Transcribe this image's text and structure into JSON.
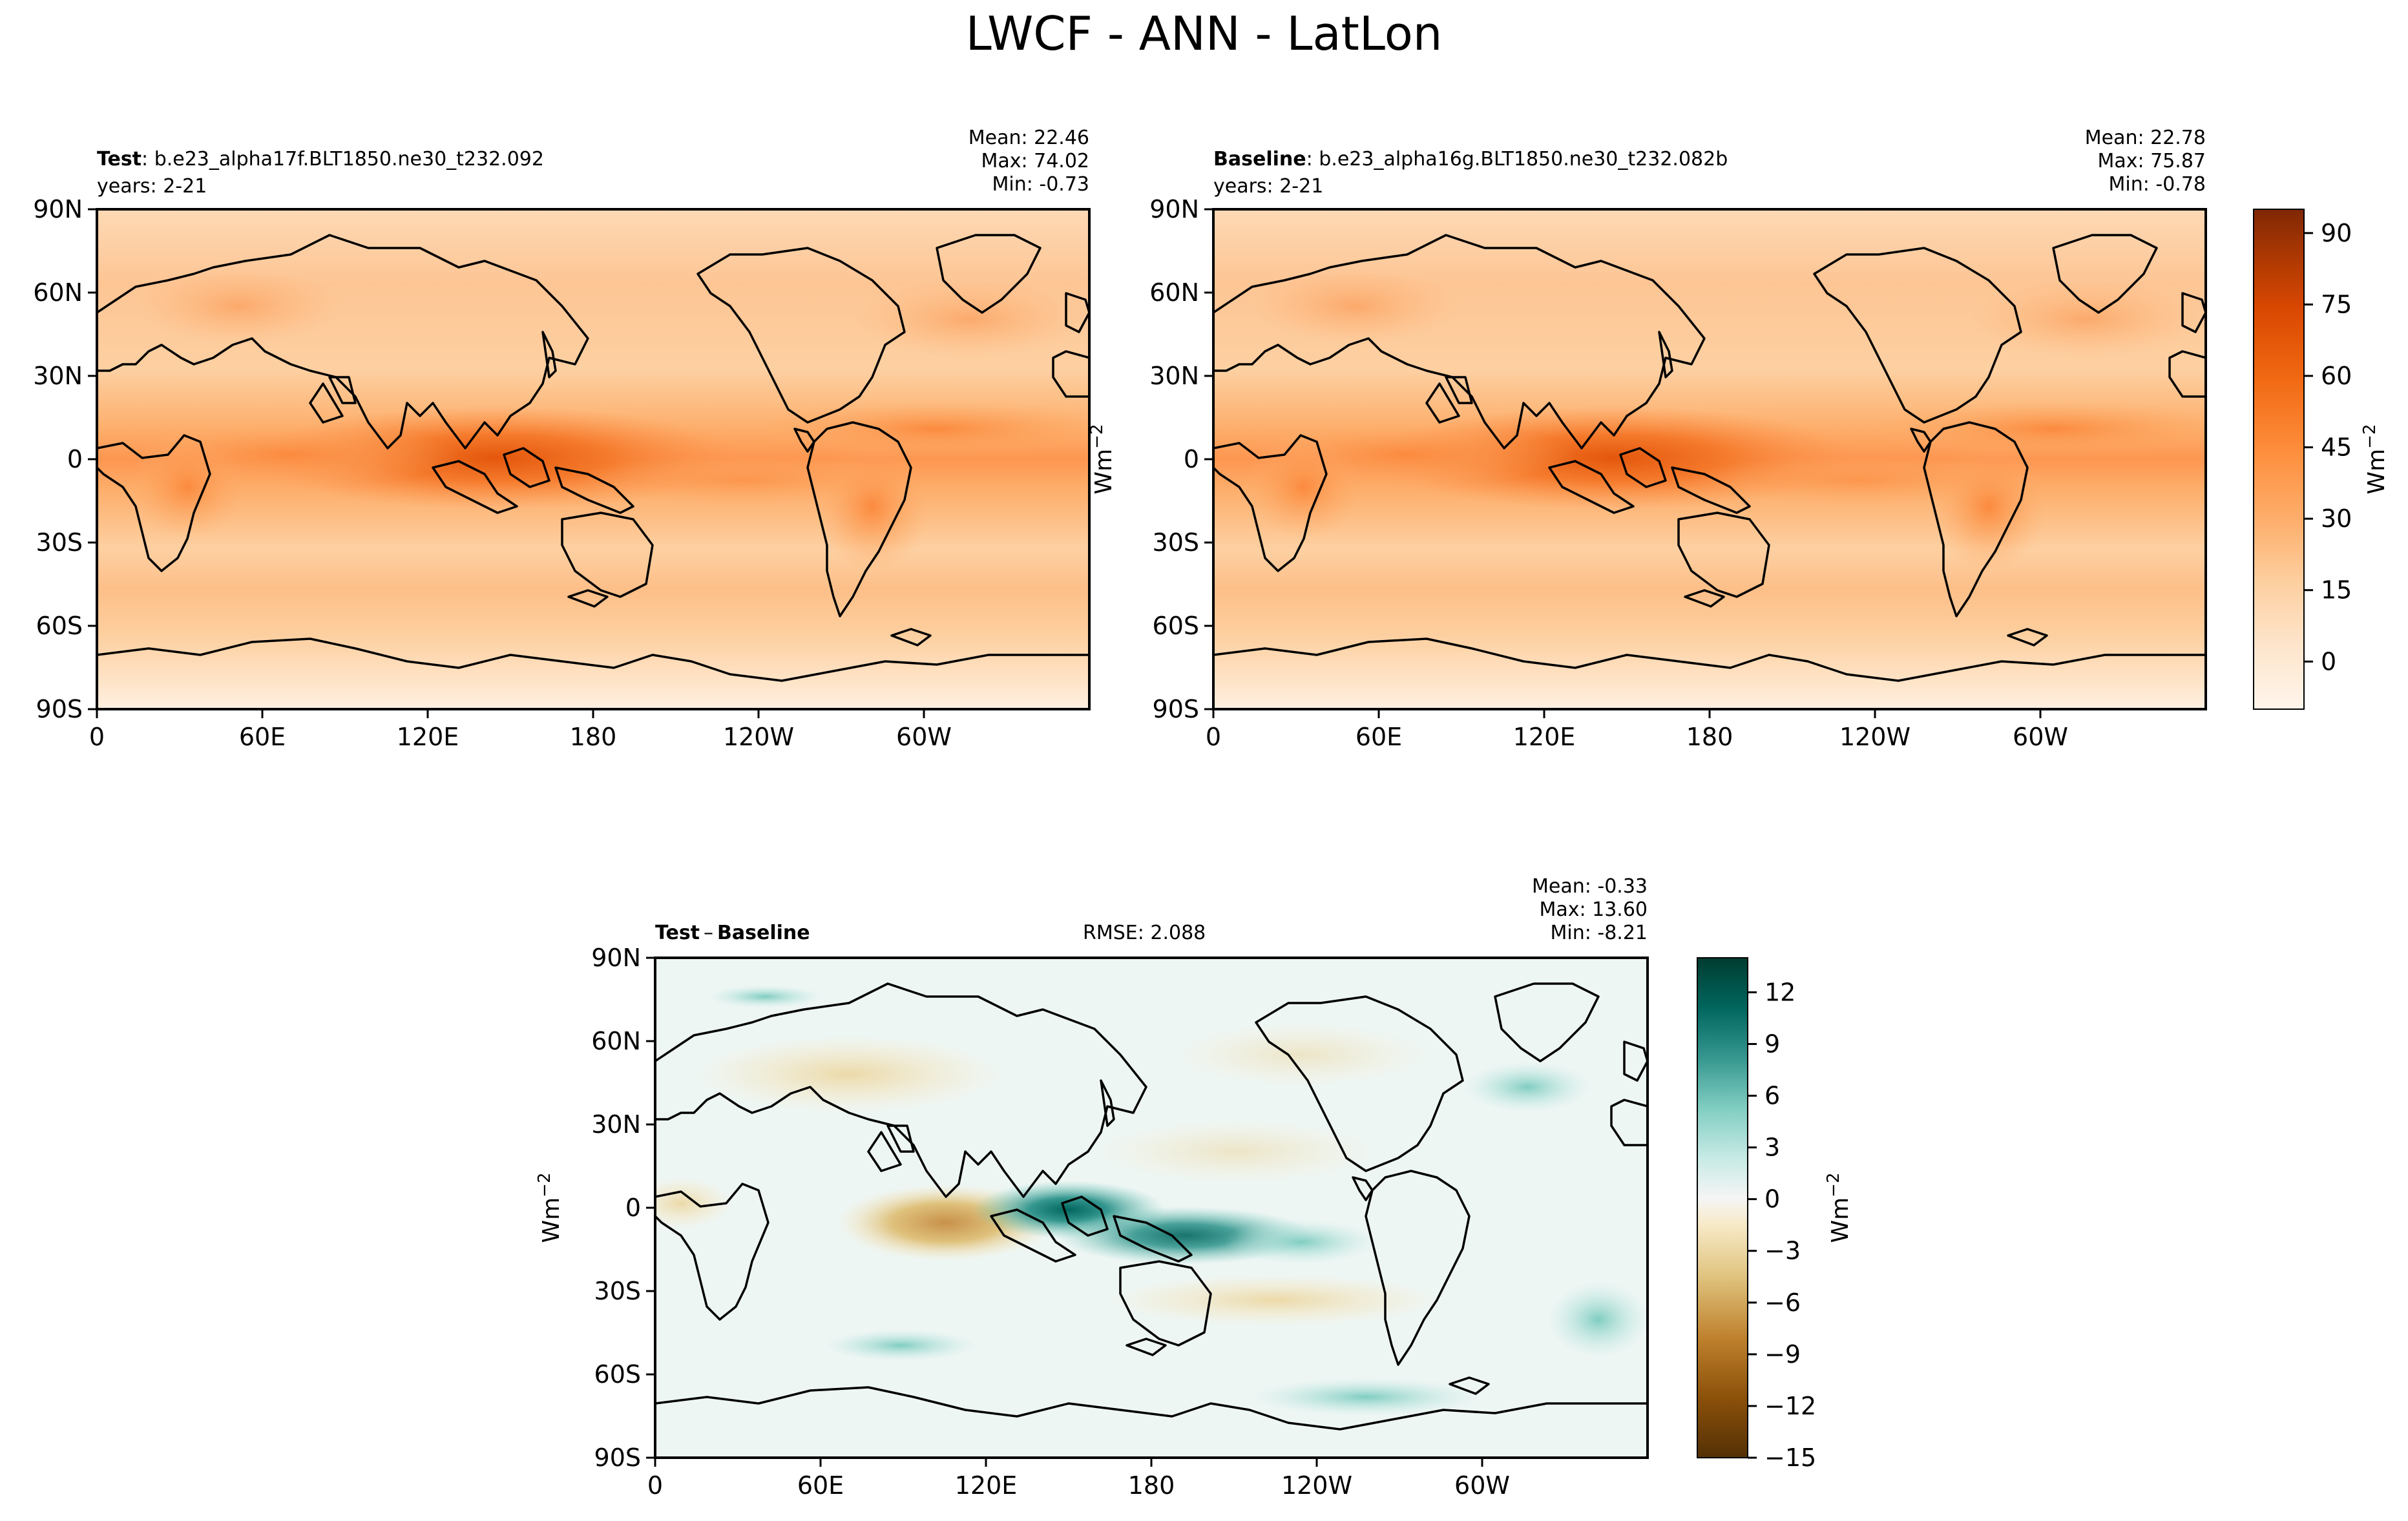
{
  "title": "LWCF - ANN - LatLon",
  "colors": {
    "orange_scale": [
      "#fff5eb",
      "#fee6ce",
      "#fdd0a2",
      "#fdae6b",
      "#fd8d3c",
      "#f16913",
      "#d94801",
      "#a63603",
      "#7f2704"
    ],
    "diff_scale": [
      "#543005",
      "#8c510a",
      "#bf812d",
      "#dfc27d",
      "#f6e8c3",
      "#f5f5f5",
      "#c7eae5",
      "#80cdc1",
      "#35978f",
      "#01665e",
      "#003c30"
    ],
    "coastline": "#000000"
  },
  "panels": {
    "test": {
      "label": "Test",
      "run": "b.e23_alpha17f.BLT1850.ne30_t232.092",
      "years": "years: 2-21",
      "mean": "Mean: 22.46",
      "max": "Max: 74.02",
      "min": "Min: -0.73"
    },
    "baseline": {
      "label": "Baseline",
      "run": "b.e23_alpha16g.BLT1850.ne30_t232.082b",
      "years": "years: 2-21",
      "mean": "Mean: 22.78",
      "max": "Max: 75.87",
      "min": "Min: -0.78"
    },
    "diff": {
      "label_a": "Test",
      "minus": "–",
      "label_b": "Baseline",
      "rmse": "RMSE: 2.088",
      "mean": "Mean: -0.33",
      "max": "Max: 13.60",
      "min": "Min: -8.21"
    }
  },
  "units": "Wm",
  "units_exp": "−2",
  "chart_data": [
    {
      "type": "heatmap",
      "panel": "Test",
      "title": "b.e23_alpha17f.BLT1850.ne30_t232.092",
      "xlabel": "",
      "ylabel": "",
      "x_ticks": [
        "0",
        "60E",
        "120E",
        "180",
        "120W",
        "60W"
      ],
      "y_ticks": [
        "90N",
        "60N",
        "30N",
        "0",
        "30S",
        "60S",
        "90S"
      ],
      "xlim": [
        0,
        360
      ],
      "ylim": [
        -90,
        90
      ],
      "colorbar": {
        "label": "Wm−2",
        "ticks": [
          0,
          15,
          30,
          45,
          60,
          75,
          90
        ],
        "range": [
          -10,
          95
        ]
      },
      "stats": {
        "mean": 22.46,
        "max": 74.02,
        "min": -0.73
      }
    },
    {
      "type": "heatmap",
      "panel": "Baseline",
      "title": "b.e23_alpha16g.BLT1850.ne30_t232.082b",
      "xlabel": "",
      "ylabel": "",
      "x_ticks": [
        "0",
        "60E",
        "120E",
        "180",
        "120W",
        "60W"
      ],
      "y_ticks": [
        "90N",
        "60N",
        "30N",
        "0",
        "30S",
        "60S",
        "90S"
      ],
      "xlim": [
        0,
        360
      ],
      "ylim": [
        -90,
        90
      ],
      "colorbar": {
        "label": "Wm−2",
        "ticks": [
          0,
          15,
          30,
          45,
          60,
          75,
          90
        ],
        "range": [
          -10,
          95
        ]
      },
      "stats": {
        "mean": 22.78,
        "max": 75.87,
        "min": -0.78
      }
    },
    {
      "type": "heatmap",
      "panel": "Test – Baseline",
      "xlabel": "",
      "ylabel": "",
      "x_ticks": [
        "0",
        "60E",
        "120E",
        "180",
        "120W",
        "60W"
      ],
      "y_ticks": [
        "90N",
        "60N",
        "30N",
        "0",
        "30S",
        "60S",
        "90S"
      ],
      "xlim": [
        0,
        360
      ],
      "ylim": [
        -90,
        90
      ],
      "colorbar": {
        "label": "Wm−2",
        "ticks": [
          -15,
          -12,
          -9,
          -6,
          -3,
          0,
          3,
          6,
          9,
          12
        ],
        "range": [
          -15,
          14
        ]
      },
      "stats": {
        "mean": -0.33,
        "max": 13.6,
        "min": -8.21,
        "rmse": 2.088
      }
    }
  ]
}
